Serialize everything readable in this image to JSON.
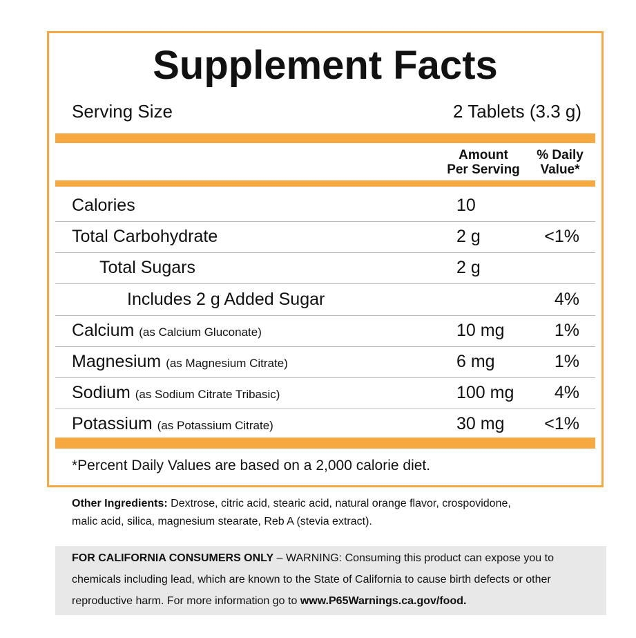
{
  "title": "Supplement Facts",
  "serving_size": {
    "label": "Serving Size",
    "value": "2 Tablets (3.3 g)"
  },
  "header": {
    "amount": [
      "Amount",
      "Per Serving"
    ],
    "daily_value": [
      "% Daily",
      "Value*"
    ]
  },
  "rows": [
    {
      "name": "Calories",
      "amount": "10"
    },
    {
      "name": "Total Carbohydrate",
      "amount": "2 g",
      "daily_value": "<1%"
    },
    {
      "name": "Total Sugars",
      "amount": "2 g",
      "indent": 1
    },
    {
      "name": "Includes 2 g Added Sugar",
      "daily_value": "4%",
      "indent": 2
    },
    {
      "name": "Calcium",
      "note": "(as Calcium Gluconate)",
      "amount": "10 mg",
      "daily_value": "1%"
    },
    {
      "name": "Magnesium",
      "note": "(as Magnesium Citrate)",
      "amount": "6 mg",
      "daily_value": "1%"
    },
    {
      "name": "Sodium",
      "note": "(as Sodium Citrate Tribasic)",
      "amount": "100 mg",
      "daily_value": "4%"
    },
    {
      "name": "Potassium",
      "note": "(as Potassium Citrate)",
      "amount": "30 mg",
      "daily_value": "<1%"
    }
  ],
  "footnote": "*Percent Daily Values are based on a 2,000 calorie diet.",
  "other_ingredients": {
    "label": "Other Ingredients:",
    "text": "Dextrose, citric acid, stearic acid, natural orange flavor, crospovidone, malic acid, silica, magnesium stearate, Reb A (stevia extract)."
  },
  "warning": {
    "label": "FOR CALIFORNIA CONSUMERS ONLY",
    "text": "– WARNING: Consuming this product can expose you to chemicals including lead, which are known to the State of California to cause birth defects or other reproductive harm. For more information go to",
    "link": "www.P65Warnings.ca.gov/food."
  }
}
